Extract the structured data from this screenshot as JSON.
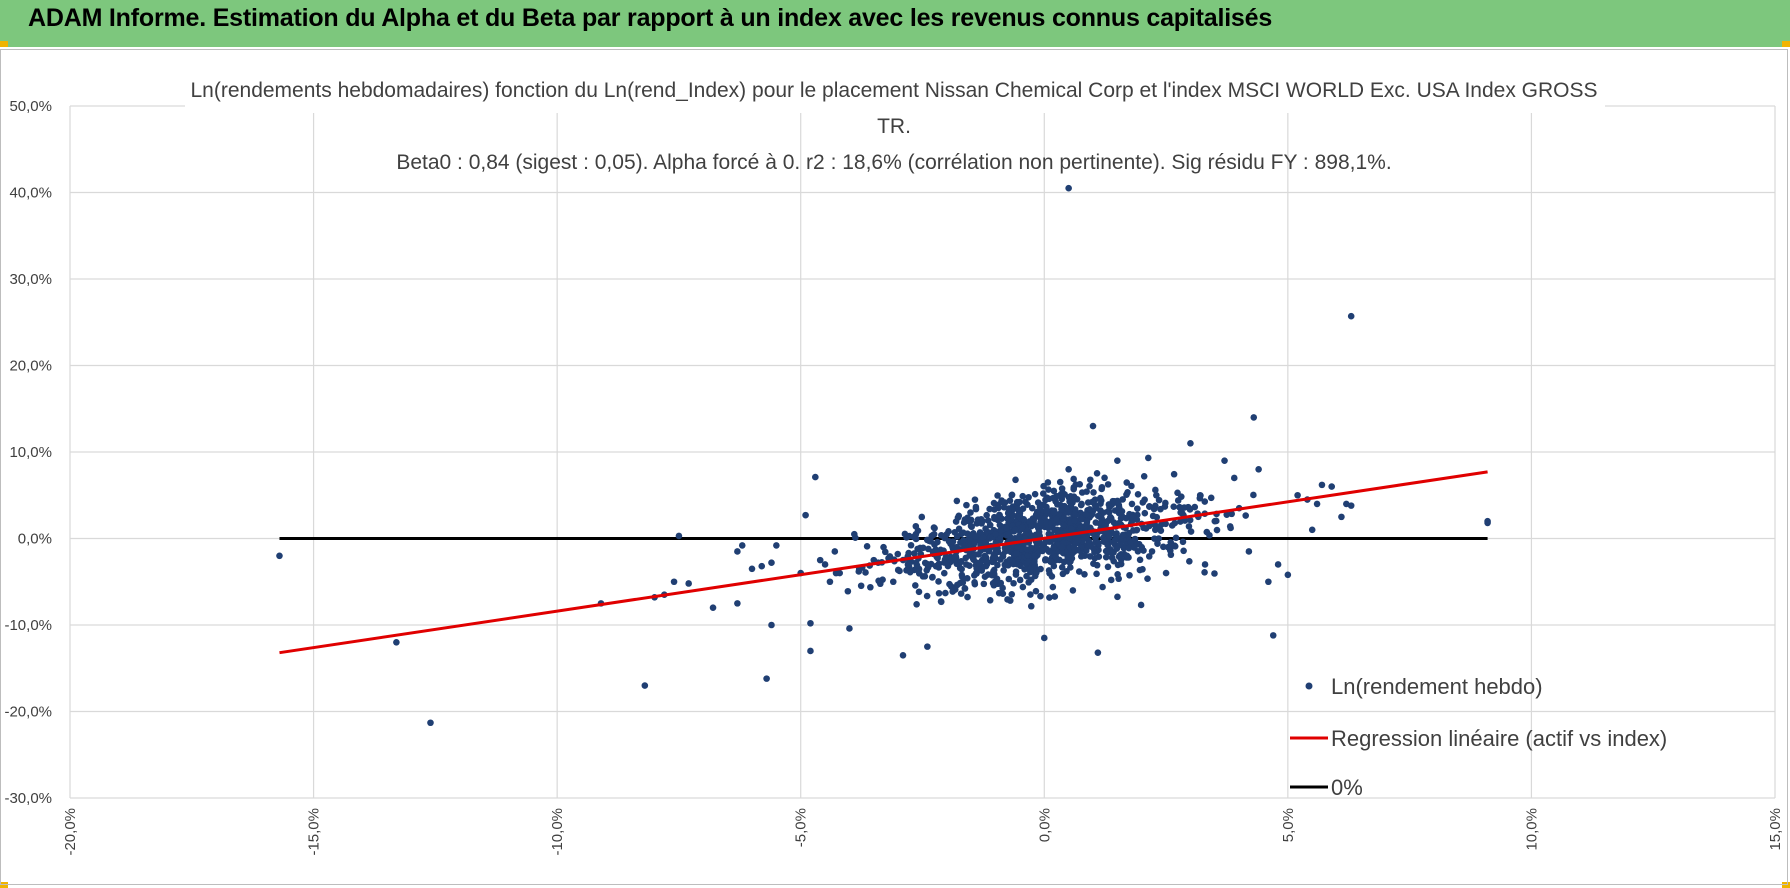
{
  "header": {
    "title": "ADAM Informe. Estimation du Alpha et du Beta par rapport à un index avec les revenus connus capitalisés"
  },
  "colors": {
    "banner": "#7dc77d",
    "points": "#203f73",
    "regression": "#e00000",
    "zero_line": "#000000",
    "grid": "#d9d9d9"
  },
  "chart_data": {
    "type": "scatter",
    "title_lines": [
      "Ln(rendements hebdomadaires) fonction du Ln(rend_Index) pour le placement Nissan Chemical Corp et l'index MSCI WORLD Exc. USA Index GROSS",
      "TR.",
      "Beta0 : 0,84 (sigest : 0,05).  Alpha forcé à 0. r2 : 18,6% (corrélation non pertinente). Sig résidu FY : 898,1%."
    ],
    "xlim": [
      -20,
      15
    ],
    "ylim": [
      -30,
      50
    ],
    "x_ticks": [
      "-20,0%",
      "-15,0%",
      "-10,0%",
      "-5,0%",
      "0,0%",
      "5,0%",
      "10,0%",
      "15,0%"
    ],
    "y_ticks": [
      "50,0%",
      "40,0%",
      "30,0%",
      "20,0%",
      "10,0%",
      "0,0%",
      "-10,0%",
      "-20,0%",
      "-30,0%"
    ],
    "grid": true,
    "legend_position": "bottom-right",
    "series": [
      {
        "name": "Ln(rendement hebdo)",
        "kind": "points",
        "x": [
          -15.7,
          -13.3,
          -12.6,
          -9.1,
          -8.2,
          -8.0,
          -7.8,
          -7.6,
          -7.5,
          -7.3,
          -6.8,
          -6.3,
          -6.3,
          -6.2,
          -6.0,
          -5.8,
          -5.7,
          -5.6,
          -5.6,
          -5.5,
          -5.0,
          -4.9,
          -4.8,
          -4.8,
          -4.7,
          -4.6,
          -4.5,
          -4.4,
          -4.3,
          -4.2,
          -4.0,
          -3.9,
          -3.8,
          -3.5,
          -3.3,
          -3.1,
          -2.9,
          -2.8,
          -2.6,
          -2.4,
          -2.3,
          -2.2,
          -1.8,
          -1.6,
          -1.4,
          -1.2,
          -1.0,
          -0.8,
          -0.6,
          -0.4,
          -0.2,
          0.0,
          0.2,
          0.4,
          0.5,
          0.6,
          0.8,
          1.0,
          1.1,
          1.3,
          1.5,
          1.7,
          1.8,
          2.0,
          2.3,
          2.5,
          2.8,
          3.0,
          3.2,
          3.3,
          3.5,
          3.7,
          3.9,
          4.0,
          4.2,
          4.3,
          4.4,
          4.6,
          4.7,
          4.8,
          5.0,
          5.2,
          5.4,
          5.5,
          5.6,
          5.7,
          5.9,
          6.1,
          6.2,
          6.3,
          9.1,
          9.1,
          0.5,
          6.3
        ],
        "y": [
          -2.0,
          -12.0,
          -21.3,
          -7.5,
          -17.0,
          -6.8,
          -6.5,
          -5.0,
          0.3,
          -5.2,
          -8.0,
          -1.5,
          -7.5,
          -0.8,
          -3.5,
          -3.2,
          -16.2,
          -10.0,
          -2.8,
          -0.8,
          -4.0,
          2.7,
          -9.8,
          -13.0,
          7.1,
          -2.5,
          -3.0,
          -5.0,
          -1.5,
          -4.0,
          -10.4,
          0.5,
          -3.5,
          -2.5,
          -1.0,
          -5.0,
          -13.5,
          -3.0,
          -1.2,
          -12.5,
          -4.5,
          -2.0,
          -1.0,
          -3.0,
          -4.0,
          -0.5,
          0.5,
          -1.5,
          1.0,
          0.0,
          -2.0,
          -11.5,
          3.0,
          1.5,
          8.0,
          -1.0,
          0.5,
          13.0,
          -13.2,
          2.0,
          9.0,
          -2.0,
          4.0,
          -1.0,
          5.0,
          -4.0,
          3.0,
          11.0,
          5.0,
          -3.0,
          2.0,
          9.0,
          7.0,
          3.5,
          -1.5,
          14.0,
          8.0,
          -5.0,
          -11.2,
          -3.0,
          -4.2,
          5.0,
          4.5,
          1.0,
          4.0,
          6.2,
          6.0,
          2.5,
          4.0,
          3.8,
          1.8,
          2.0,
          40.5,
          25.7
        ]
      },
      {
        "name": "Regression linéaire (actif vs index)",
        "kind": "line",
        "x": [
          -15.7,
          9.1
        ],
        "y": [
          -13.2,
          7.7
        ]
      },
      {
        "name": "0%",
        "kind": "line",
        "x": [
          -15.7,
          9.1
        ],
        "y": [
          0,
          0
        ]
      }
    ]
  }
}
